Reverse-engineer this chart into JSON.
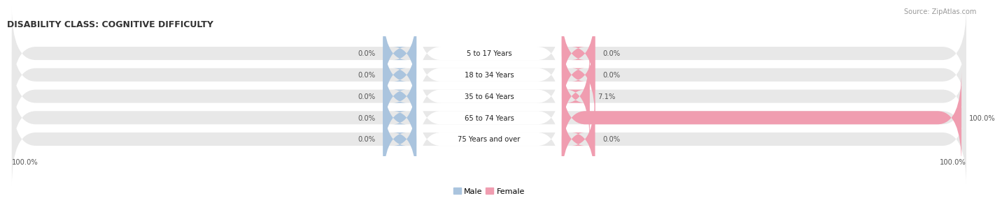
{
  "title": "DISABILITY CLASS: COGNITIVE DIFFICULTY",
  "source": "Source: ZipAtlas.com",
  "categories": [
    "5 to 17 Years",
    "18 to 34 Years",
    "35 to 64 Years",
    "65 to 74 Years",
    "75 Years and over"
  ],
  "male_values": [
    0.0,
    0.0,
    0.0,
    0.0,
    0.0
  ],
  "female_values": [
    0.0,
    0.0,
    7.1,
    100.0,
    0.0
  ],
  "male_left_labels": [
    "0.0%",
    "0.0%",
    "0.0%",
    "0.0%",
    "0.0%"
  ],
  "female_right_labels": [
    "0.0%",
    "0.0%",
    "7.1%",
    "100.0%",
    "0.0%"
  ],
  "bottom_left_label": "100.0%",
  "bottom_right_label": "100.0%",
  "male_color": "#aac4de",
  "female_color": "#f09db0",
  "bar_bg_color": "#e8e8e8",
  "male_stub_pct": 6.0,
  "female_stub_pct": 6.0,
  "fig_width": 14.06,
  "fig_height": 2.69
}
